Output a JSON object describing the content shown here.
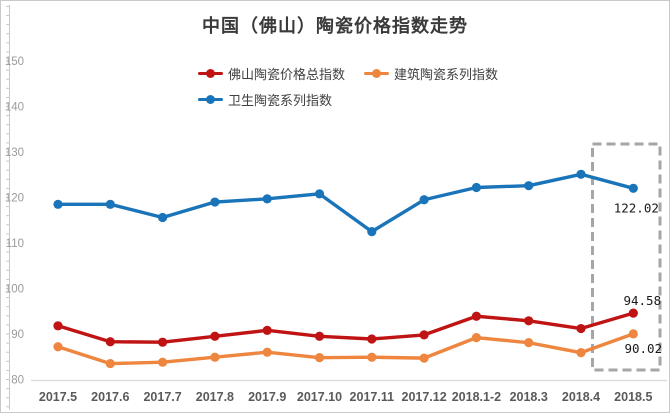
{
  "title": "中国（佛山）陶瓷价格指数走势",
  "legend": [
    {
      "label": "佛山陶瓷价格总指数",
      "color": "#c01414"
    },
    {
      "label": "建筑陶瓷系列指数",
      "color": "#ee8640"
    },
    {
      "label": "卫生陶瓷系列指数",
      "color": "#1a74b9"
    }
  ],
  "colors": {
    "red_series": "#c01414",
    "orange_series": "#ee8640",
    "blue_series": "#1a74b9",
    "highlight_box": "#a6a6a6",
    "axis_line": "#c9c9c9",
    "baseline": "#d9d9d9"
  },
  "chart_data": {
    "type": "line",
    "title": "中国（佛山）陶瓷价格指数走势",
    "categories": [
      "2017.5",
      "2017.6",
      "2017.7",
      "2017.8",
      "2017.9",
      "2017.10",
      "2017.11",
      "2017.12",
      "2018.1-2",
      "2018.3",
      "2018.4",
      "2018.5"
    ],
    "series": [
      {
        "name": "佛山陶瓷价格总指数",
        "color": "#c01414",
        "values": [
          91.8,
          88.3,
          88.2,
          89.5,
          90.8,
          89.5,
          88.9,
          89.8,
          93.9,
          92.9,
          91.2,
          94.58
        ]
      },
      {
        "name": "建筑陶瓷系列指数",
        "color": "#ee8640",
        "values": [
          87.2,
          83.5,
          83.8,
          84.9,
          86.0,
          84.8,
          84.9,
          84.7,
          89.2,
          88.1,
          85.9,
          90.02
        ]
      },
      {
        "name": "卫生陶瓷系列指数",
        "color": "#1a74b9",
        "values": [
          118.5,
          118.5,
          115.6,
          119.0,
          119.7,
          120.8,
          112.5,
          119.5,
          122.2,
          122.6,
          125.1,
          122.02
        ]
      }
    ],
    "xlabel": "",
    "ylabel": "",
    "ylim": [
      80,
      150
    ],
    "y_ticks": [
      80,
      90,
      100,
      110,
      120,
      130,
      140,
      150
    ],
    "grid": false,
    "legend_position": "top",
    "annotations": [
      {
        "text": "94.58",
        "series": "佛山陶瓷价格总指数",
        "category": "2018.5"
      },
      {
        "text": "90.02",
        "series": "建筑陶瓷系列指数",
        "category": "2018.5"
      },
      {
        "text": "122.02",
        "series": "卫生陶瓷系列指数",
        "category": "2018.5"
      }
    ],
    "highlight_box": {
      "categories": [
        "2018.4",
        "2018.5"
      ],
      "style": "dashed",
      "color": "#a6a6a6"
    }
  }
}
